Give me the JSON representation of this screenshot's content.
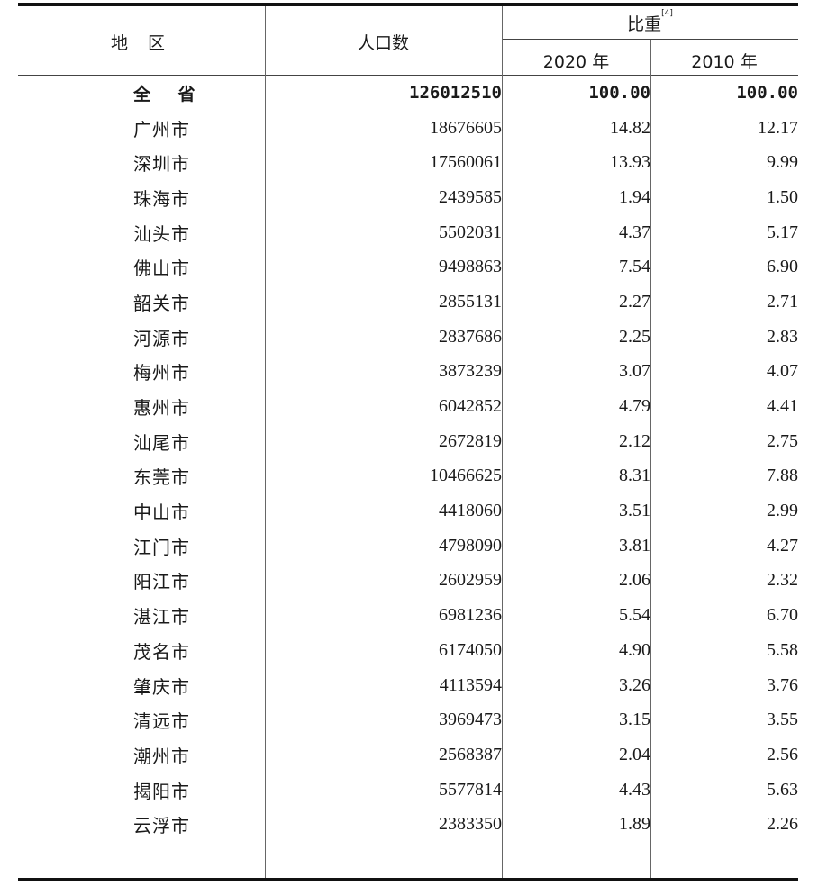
{
  "header": {
    "region": "地 区",
    "population": "人口数",
    "share": "比重",
    "share_note": "[4]",
    "year_2020": "2020 年",
    "year_2010": "2010 年"
  },
  "rows": [
    {
      "region": "全 省",
      "population": "126012510",
      "share_2020": "100.00",
      "share_2010": "100.00"
    },
    {
      "region": "广州市",
      "population": "18676605",
      "share_2020": "14.82",
      "share_2010": "12.17"
    },
    {
      "region": "深圳市",
      "population": "17560061",
      "share_2020": "13.93",
      "share_2010": "9.99"
    },
    {
      "region": "珠海市",
      "population": "2439585",
      "share_2020": "1.94",
      "share_2010": "1.50"
    },
    {
      "region": "汕头市",
      "population": "5502031",
      "share_2020": "4.37",
      "share_2010": "5.17"
    },
    {
      "region": "佛山市",
      "population": "9498863",
      "share_2020": "7.54",
      "share_2010": "6.90"
    },
    {
      "region": "韶关市",
      "population": "2855131",
      "share_2020": "2.27",
      "share_2010": "2.71"
    },
    {
      "region": "河源市",
      "population": "2837686",
      "share_2020": "2.25",
      "share_2010": "2.83"
    },
    {
      "region": "梅州市",
      "population": "3873239",
      "share_2020": "3.07",
      "share_2010": "4.07"
    },
    {
      "region": "惠州市",
      "population": "6042852",
      "share_2020": "4.79",
      "share_2010": "4.41"
    },
    {
      "region": "汕尾市",
      "population": "2672819",
      "share_2020": "2.12",
      "share_2010": "2.75"
    },
    {
      "region": "东莞市",
      "population": "10466625",
      "share_2020": "8.31",
      "share_2010": "7.88"
    },
    {
      "region": "中山市",
      "population": "4418060",
      "share_2020": "3.51",
      "share_2010": "2.99"
    },
    {
      "region": "江门市",
      "population": "4798090",
      "share_2020": "3.81",
      "share_2010": "4.27"
    },
    {
      "region": "阳江市",
      "population": "2602959",
      "share_2020": "2.06",
      "share_2010": "2.32"
    },
    {
      "region": "湛江市",
      "population": "6981236",
      "share_2020": "5.54",
      "share_2010": "6.70"
    },
    {
      "region": "茂名市",
      "population": "6174050",
      "share_2020": "4.90",
      "share_2010": "5.58"
    },
    {
      "region": "肇庆市",
      "population": "4113594",
      "share_2020": "3.26",
      "share_2010": "3.76"
    },
    {
      "region": "清远市",
      "population": "3969473",
      "share_2020": "3.15",
      "share_2010": "3.55"
    },
    {
      "region": "潮州市",
      "population": "2568387",
      "share_2020": "2.04",
      "share_2010": "2.56"
    },
    {
      "region": "揭阳市",
      "population": "5577814",
      "share_2020": "4.43",
      "share_2010": "5.63"
    },
    {
      "region": "云浮市",
      "population": "2383350",
      "share_2020": "1.89",
      "share_2010": "2.26"
    }
  ]
}
